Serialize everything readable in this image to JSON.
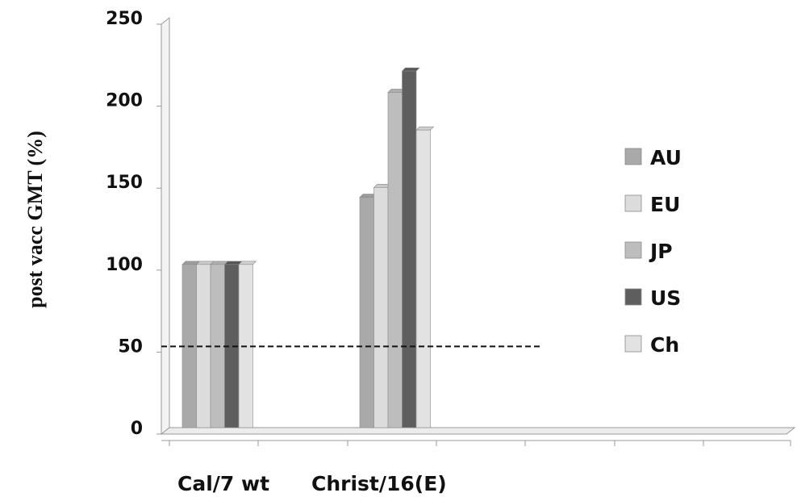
{
  "chart_data": {
    "type": "bar",
    "title": "",
    "xlabel": "",
    "ylabel": "post vacc GMT (%)",
    "ylim": [
      0,
      250
    ],
    "yticks": [
      0,
      50,
      100,
      150,
      200,
      250
    ],
    "categories": [
      "Cal/7 wt",
      "Christ/16(E)"
    ],
    "series": [
      {
        "name": "AU",
        "values": [
          100,
          141
        ],
        "color": "#a9a9a9"
      },
      {
        "name": "EU",
        "values": [
          100,
          147
        ],
        "color": "#dcdcdc"
      },
      {
        "name": "JP",
        "values": [
          100,
          205
        ],
        "color": "#bdbdbd"
      },
      {
        "name": "US",
        "values": [
          100,
          218
        ],
        "color": "#5e5e5e"
      },
      {
        "name": "Ch",
        "values": [
          100,
          182
        ],
        "color": "#e2e2e2"
      }
    ],
    "reference_line": {
      "value": 50,
      "style": "dashed"
    },
    "legend_position": "right",
    "grid": false
  }
}
